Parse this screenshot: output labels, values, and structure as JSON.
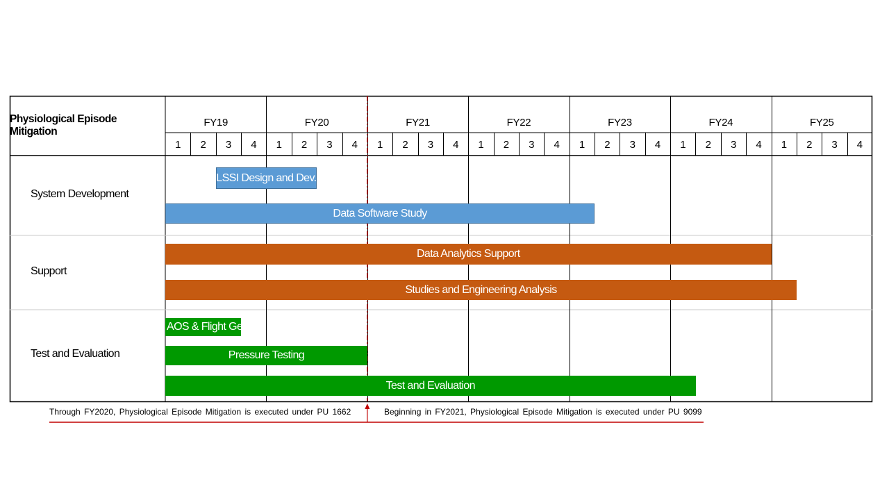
{
  "chart_data": {
    "type": "gantt",
    "title": "Physiological Episode Mitigation",
    "fiscal_years": [
      "FY19",
      "FY20",
      "FY21",
      "FY22",
      "FY23",
      "FY24",
      "FY25"
    ],
    "quarters": [
      "1",
      "2",
      "3",
      "4"
    ],
    "time_unit": "quarter index from FY19 Q1 (0) to end of FY25 (28)",
    "rows": [
      {
        "label": "System Development"
      },
      {
        "label": "Support"
      },
      {
        "label": "Test and Evaluation"
      }
    ],
    "tasks": [
      {
        "label": "LSSI Design and Dev.",
        "row": 0,
        "lane": 0,
        "start": 2.0,
        "end": 6.0,
        "color": "#5b9bd5"
      },
      {
        "label": "Data Software Study",
        "row": 0,
        "lane": 1,
        "start": 0.0,
        "end": 17.0,
        "color": "#5b9bd5"
      },
      {
        "label": "Data Analytics Support",
        "row": 1,
        "lane": 0,
        "start": 0.0,
        "end": 24.0,
        "color": "#c55a11"
      },
      {
        "label": "Studies and Engineering Analysis",
        "row": 1,
        "lane": 1,
        "start": 0.0,
        "end": 25.0,
        "color": "#c55a11"
      },
      {
        "label": "AOS & Flight Gear",
        "row": 2,
        "lane": 0,
        "start": 0.0,
        "end": 3.0,
        "color": "#009900"
      },
      {
        "label": "Pressure Testing",
        "row": 2,
        "lane": 1,
        "start": 0.0,
        "end": 8.0,
        "color": "#009900"
      },
      {
        "label": "Test and Evaluation",
        "row": 2,
        "lane": 2,
        "start": 0.0,
        "end": 21.0,
        "color": "#009900"
      }
    ],
    "milestone": {
      "at": 8.0,
      "color": "#c00000"
    },
    "notes": {
      "left": "Through FY2020, Physiological Episode Mitigation is executed under PU 1662",
      "right": "Beginning in FY2021, Physiological Episode Mitigation is executed under PU 9099"
    }
  }
}
